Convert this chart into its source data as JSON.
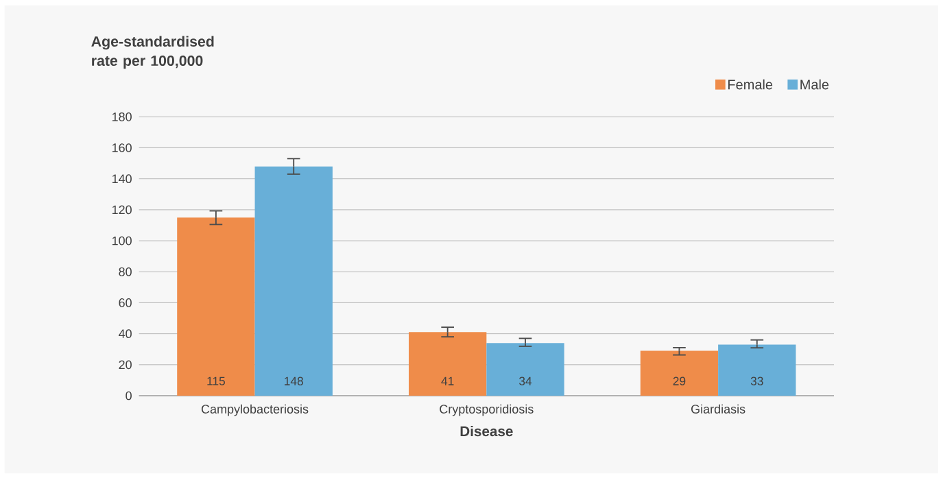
{
  "chart_data": {
    "type": "bar",
    "xlabel": "Disease",
    "ylabel": "Age-standardised rate per 100,000",
    "categories": [
      "Campylobacteriosis",
      "Cryptosporidiosis",
      "Giardiasis"
    ],
    "series": [
      {
        "name": "Female",
        "color": "#ef8c4a",
        "values": [
          115,
          41,
          29
        ],
        "errors": [
          [
            110.5,
            119.3
          ],
          [
            38.0,
            44.2
          ],
          [
            26.3,
            31.0
          ]
        ]
      },
      {
        "name": "Male",
        "color": "#68afd8",
        "values": [
          148,
          34,
          33
        ],
        "errors": [
          [
            143.0,
            153.0
          ],
          [
            31.9,
            37.0
          ],
          [
            30.9,
            36.0
          ]
        ]
      }
    ],
    "ylim": [
      0,
      180
    ],
    "yticks": [
      0,
      20,
      40,
      60,
      80,
      100,
      120,
      140,
      160,
      180
    ],
    "grid": "y",
    "legend": "top right",
    "data_labels": true
  }
}
